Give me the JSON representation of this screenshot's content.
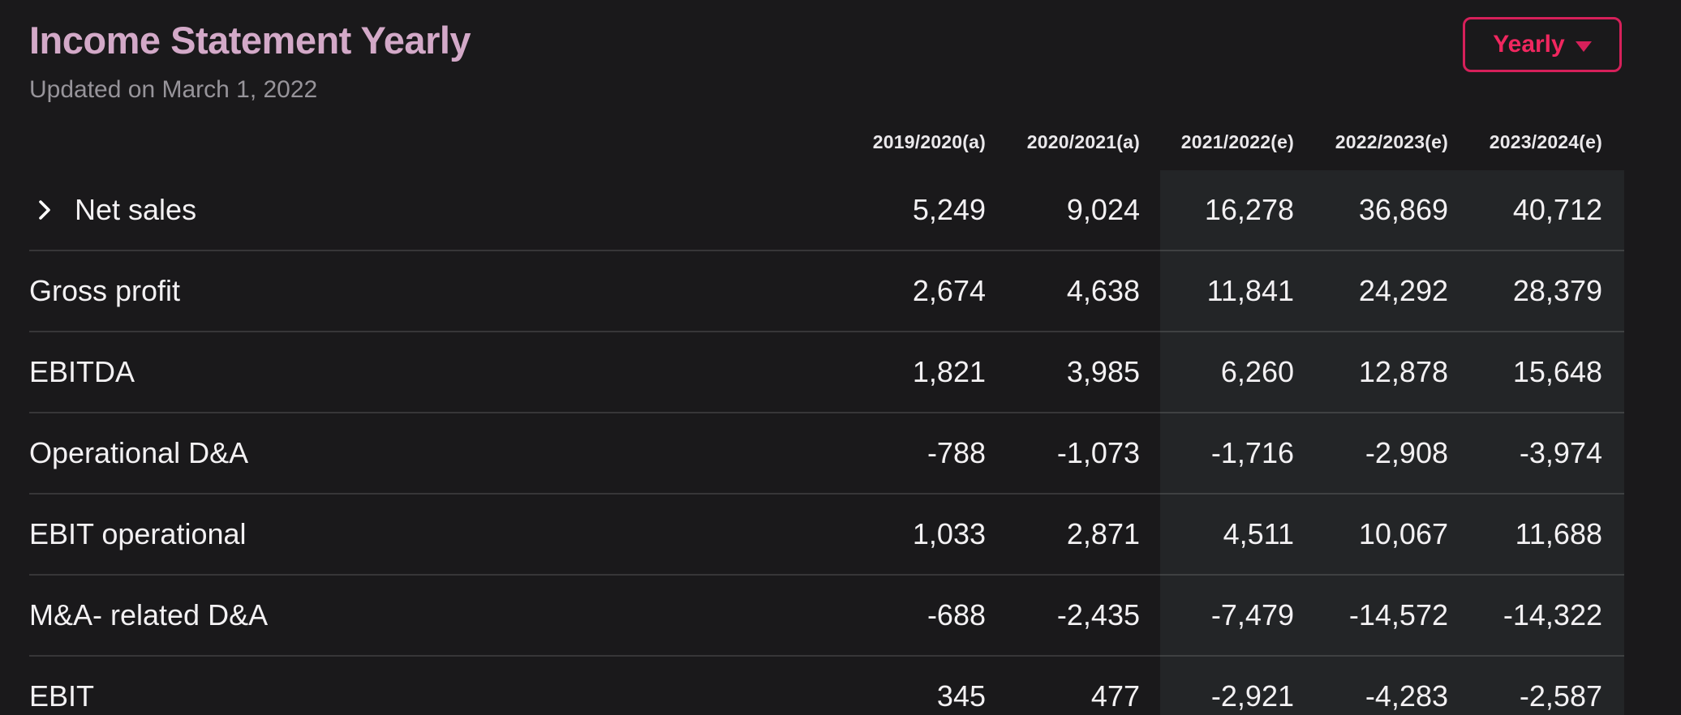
{
  "header": {
    "title": "Income Statement Yearly",
    "subtitle": "Updated on March 1, 2022",
    "period_button": {
      "label": "Yearly",
      "icon": "caret-down-icon"
    }
  },
  "table": {
    "columns": [
      {
        "label": "2019/2020(a)",
        "type": "actual"
      },
      {
        "label": "2020/2021(a)",
        "type": "actual"
      },
      {
        "label": "2021/2022(e)",
        "type": "estimate"
      },
      {
        "label": "2022/2023(e)",
        "type": "estimate"
      },
      {
        "label": "2023/2024(e)",
        "type": "estimate"
      }
    ],
    "rows": [
      {
        "label": "Net sales",
        "expandable": true,
        "values": [
          "5,249",
          "9,024",
          "16,278",
          "36,869",
          "40,712"
        ]
      },
      {
        "label": "Gross profit",
        "expandable": false,
        "values": [
          "2,674",
          "4,638",
          "11,841",
          "24,292",
          "28,379"
        ]
      },
      {
        "label": "EBITDA",
        "expandable": false,
        "values": [
          "1,821",
          "3,985",
          "6,260",
          "12,878",
          "15,648"
        ]
      },
      {
        "label": "Operational D&A",
        "expandable": false,
        "values": [
          "-788",
          "-1,073",
          "-1,716",
          "-2,908",
          "-3,974"
        ]
      },
      {
        "label": "EBIT operational",
        "expandable": false,
        "values": [
          "1,033",
          "2,871",
          "4,511",
          "10,067",
          "11,688"
        ]
      },
      {
        "label": "M&A- related D&A",
        "expandable": false,
        "values": [
          "-688",
          "-2,435",
          "-7,479",
          "-14,572",
          "-14,322"
        ]
      },
      {
        "label": "EBIT",
        "expandable": false,
        "values": [
          "345",
          "477",
          "-2,921",
          "-4,283",
          "-2,587"
        ]
      }
    ]
  },
  "colors": {
    "background": "#1a191b",
    "estimates_band": "#232527",
    "title_pink": "#d3a9c8",
    "accent_pink": "#f0275f",
    "border_pink": "#d6205a",
    "text": "#f3f1f3",
    "muted_text": "#97949a"
  },
  "icons": {
    "expand_row": "chevron-right-icon",
    "period_dropdown": "caret-down-icon"
  }
}
